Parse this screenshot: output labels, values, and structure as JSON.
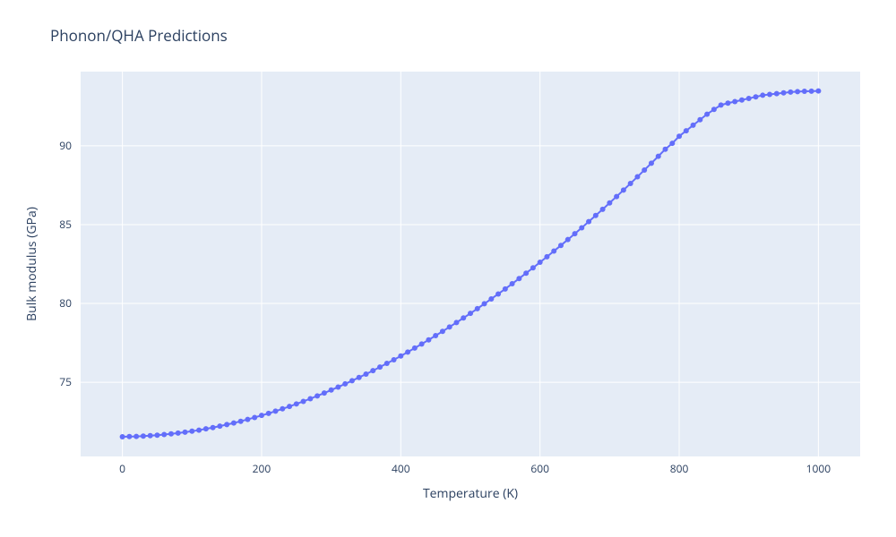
{
  "chart": {
    "type": "line-scatter",
    "title": "Phonon/QHA Predictions",
    "title_fontsize": 17,
    "title_color": "#2a3f5f",
    "background_color": "#ffffff",
    "plot_background_color": "#e5ecf6",
    "grid_color": "#ffffff",
    "axis_text_color": "#2a3f5f",
    "axis_label_fontsize": 14,
    "tick_fontsize": 12,
    "line_color": "#636efa",
    "line_width": 2,
    "marker_color": "#636efa",
    "marker_size": 3,
    "x": {
      "label": "Temperature (K)",
      "min": -60,
      "max": 1060,
      "ticks": [
        0,
        200,
        400,
        600,
        800,
        1000
      ]
    },
    "y": {
      "label": "Bulk modulus (GPa)",
      "min": 70.3,
      "max": 94.7,
      "ticks": [
        75,
        80,
        85,
        90
      ]
    },
    "data": {
      "x": [
        0,
        10,
        20,
        30,
        40,
        50,
        60,
        70,
        80,
        90,
        100,
        110,
        120,
        130,
        140,
        150,
        160,
        170,
        180,
        190,
        200,
        210,
        220,
        230,
        240,
        250,
        260,
        270,
        280,
        290,
        300,
        310,
        320,
        330,
        340,
        350,
        360,
        370,
        380,
        390,
        400,
        410,
        420,
        430,
        440,
        450,
        460,
        470,
        480,
        490,
        500,
        510,
        520,
        530,
        540,
        550,
        560,
        570,
        580,
        590,
        600,
        610,
        620,
        630,
        640,
        650,
        660,
        670,
        680,
        690,
        700,
        710,
        720,
        730,
        740,
        750,
        760,
        770,
        780,
        790,
        800,
        810,
        820,
        830,
        840,
        850,
        860,
        870,
        880,
        890,
        900,
        910,
        920,
        930,
        940,
        950,
        960,
        970,
        980,
        990,
        1000
      ],
      "y": [
        71.55,
        71.56,
        71.57,
        71.59,
        71.62,
        71.65,
        71.69,
        71.73,
        71.78,
        71.84,
        71.9,
        71.97,
        72.05,
        72.13,
        72.22,
        72.32,
        72.42,
        72.53,
        72.65,
        72.77,
        72.9,
        73.03,
        73.17,
        73.32,
        73.47,
        73.63,
        73.79,
        73.96,
        74.14,
        74.32,
        74.51,
        74.7,
        74.9,
        75.1,
        75.31,
        75.52,
        75.74,
        75.97,
        76.2,
        76.43,
        76.67,
        76.92,
        77.17,
        77.43,
        77.69,
        77.96,
        78.23,
        78.51,
        78.79,
        79.08,
        79.37,
        79.67,
        79.98,
        80.29,
        80.6,
        80.92,
        81.25,
        81.58,
        81.92,
        82.26,
        82.61,
        82.96,
        83.32,
        83.68,
        84.05,
        84.42,
        84.8,
        85.19,
        85.58,
        85.97,
        86.37,
        86.78,
        87.19,
        87.61,
        88.03,
        88.46,
        88.89,
        89.33,
        89.78,
        90.15,
        90.6,
        90.95,
        91.3,
        91.65,
        92.0,
        92.3,
        92.58,
        92.7,
        92.8,
        92.9,
        93.0,
        93.1,
        93.2,
        93.25,
        93.3,
        93.35,
        93.4,
        93.43,
        93.45,
        93.46,
        93.47
      ]
    }
  }
}
